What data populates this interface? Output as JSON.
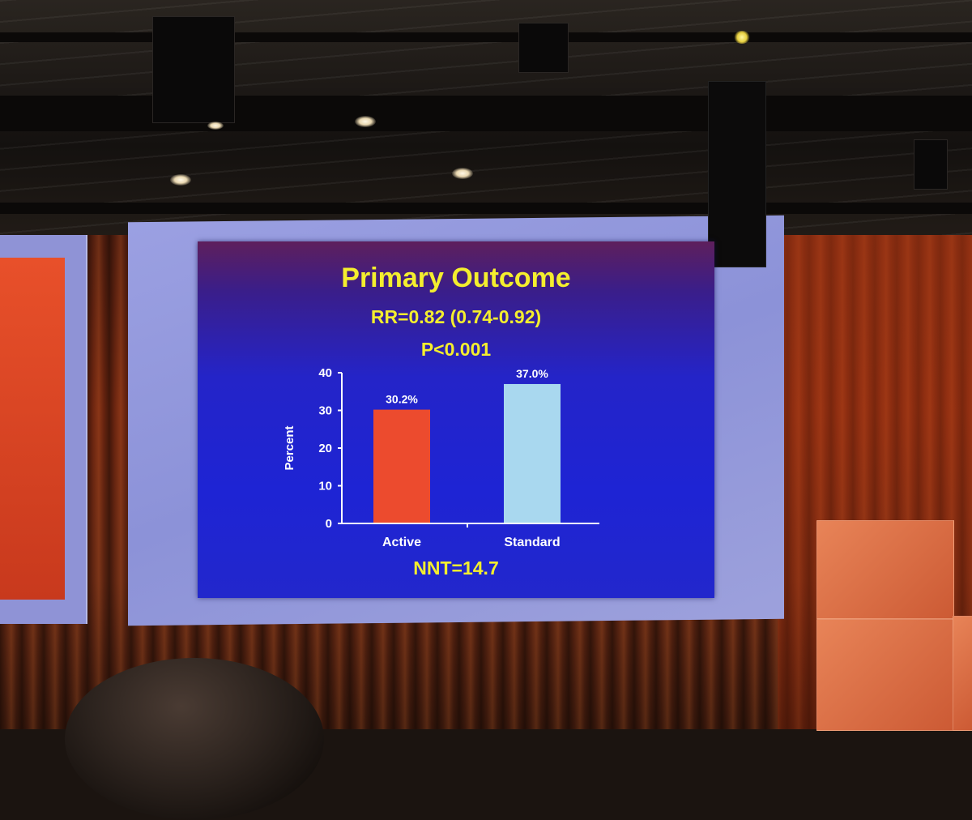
{
  "slide": {
    "title": "Primary Outcome",
    "rr_line": "RR=0.82 (0.74-0.92)",
    "p_line": "P<0.001",
    "nnt_line": "NNT=14.7"
  },
  "colors": {
    "slide_background": "#1e24d4",
    "title_text": "#f4ee2e",
    "active_bar": "#ec4b2e",
    "standard_bar": "#a9d8ef",
    "axis": "#ffffff"
  },
  "chart_data": {
    "type": "bar",
    "categories": [
      "Active",
      "Standard"
    ],
    "values": [
      30.2,
      37.0
    ],
    "data_labels": [
      "30.2%",
      "37.0%"
    ],
    "bar_colors": [
      "#ec4b2e",
      "#a9d8ef"
    ],
    "ylabel": "Percent",
    "ylim": [
      0,
      40
    ],
    "yticks": [
      0,
      10,
      20,
      30,
      40
    ],
    "grid": false,
    "legend": "none"
  }
}
